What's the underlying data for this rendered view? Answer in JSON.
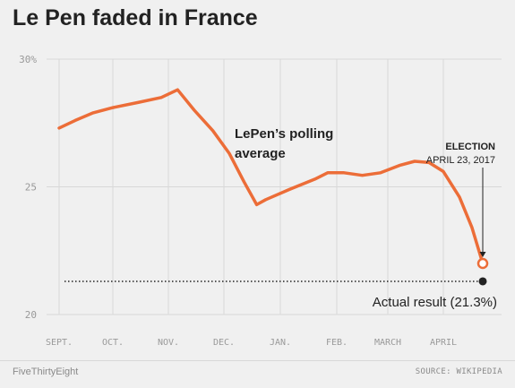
{
  "title": "Le Pen faded in France",
  "footer": {
    "brand": "FiveThirtyEight",
    "source": "SOURCE: WIKIPEDIA"
  },
  "colors": {
    "line": "#ec6d38",
    "grid": "#d8d8d8",
    "text": "#222222",
    "axis_text": "#999999",
    "background": "#f0f0f0"
  },
  "chart_data": {
    "type": "line",
    "title": "Le Pen faded in France",
    "xlabel": "",
    "ylabel": "",
    "ylim": [
      20,
      30
    ],
    "y_ticks": [
      {
        "value": 30,
        "label": "30%"
      },
      {
        "value": 25,
        "label": "25"
      },
      {
        "value": 20,
        "label": "20"
      }
    ],
    "x_ticks": [
      "SEPT.",
      "OCT.",
      "NOV.",
      "DEC.",
      "JAN.",
      "FEB.",
      "MARCH",
      "APRIL"
    ],
    "grid": true,
    "series": [
      {
        "name": "LePen's polling average",
        "points": [
          {
            "x": "2016-09-01",
            "y": 27.3
          },
          {
            "x": "2016-09-10",
            "y": 27.6
          },
          {
            "x": "2016-09-20",
            "y": 27.9
          },
          {
            "x": "2016-10-01",
            "y": 28.1
          },
          {
            "x": "2016-10-15",
            "y": 28.3
          },
          {
            "x": "2016-10-28",
            "y": 28.5
          },
          {
            "x": "2016-11-06",
            "y": 28.8
          },
          {
            "x": "2016-11-15",
            "y": 28.0
          },
          {
            "x": "2016-11-25",
            "y": 27.2
          },
          {
            "x": "2016-12-04",
            "y": 26.3
          },
          {
            "x": "2016-12-12",
            "y": 25.2
          },
          {
            "x": "2016-12-19",
            "y": 24.3
          },
          {
            "x": "2016-12-24",
            "y": 24.5
          },
          {
            "x": "2017-01-06",
            "y": 24.9
          },
          {
            "x": "2017-01-20",
            "y": 25.3
          },
          {
            "x": "2017-01-27",
            "y": 25.55
          },
          {
            "x": "2017-02-05",
            "y": 25.55
          },
          {
            "x": "2017-02-15",
            "y": 25.45
          },
          {
            "x": "2017-02-25",
            "y": 25.55
          },
          {
            "x": "2017-03-08",
            "y": 25.85
          },
          {
            "x": "2017-03-16",
            "y": 26.0
          },
          {
            "x": "2017-03-24",
            "y": 25.95
          },
          {
            "x": "2017-04-01",
            "y": 25.6
          },
          {
            "x": "2017-04-10",
            "y": 24.6
          },
          {
            "x": "2017-04-17",
            "y": 23.4
          },
          {
            "x": "2017-04-23",
            "y": 22.0
          }
        ]
      }
    ],
    "actual_result": {
      "x": "2017-04-23",
      "y": 21.3,
      "label": "Actual result (21.3%)"
    },
    "annotations": {
      "series_label": [
        "LePen’s polling",
        "average"
      ],
      "election_title": "ELECTION",
      "election_date": "APRIL 23, 2017"
    }
  }
}
